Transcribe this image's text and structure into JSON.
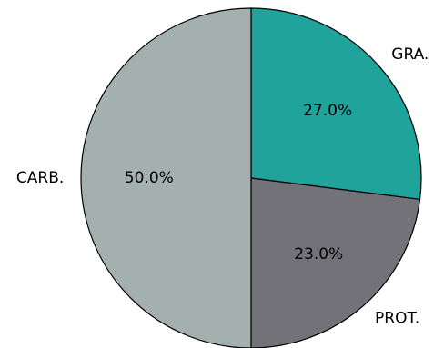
{
  "chart_data": {
    "type": "pie",
    "title": "",
    "categories": [
      "GRA.",
      "PROT.",
      "CARB."
    ],
    "values": [
      27.0,
      23.0,
      50.0
    ],
    "percent_labels": [
      "27.0%",
      "23.0%",
      "50.0%"
    ],
    "colors": [
      "#20a39b",
      "#737278",
      "#a3b0ae"
    ],
    "start_angle_deg": 90,
    "direction": "clockwise",
    "legend": "none"
  }
}
